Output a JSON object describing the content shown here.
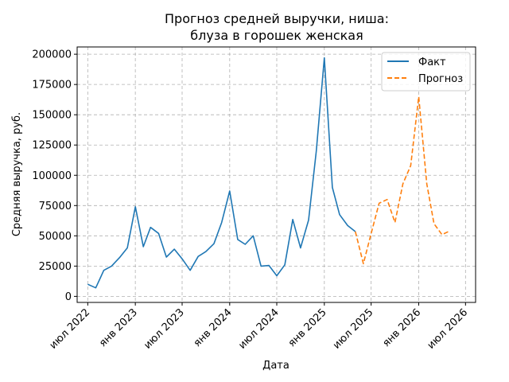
{
  "chart_data": {
    "type": "line",
    "title_line1": "Прогноз средней выручки, ниша:",
    "title_line2": "блуза в горошек женская",
    "xlabel": "Дата",
    "ylabel": "Средняя выручка, руб.",
    "ylim": [
      -5000,
      206000
    ],
    "xlim": [
      "2022-05-21",
      "2026-08-09"
    ],
    "grid": true,
    "legend_position": "top-right",
    "yticks": [
      0,
      25000,
      50000,
      75000,
      100000,
      125000,
      150000,
      175000,
      200000
    ],
    "ytick_labels": [
      "0",
      "25000",
      "50000",
      "75000",
      "100000",
      "125000",
      "150000",
      "175000",
      "200000"
    ],
    "xticks": [
      "2022-07-01",
      "2023-01-01",
      "2023-07-01",
      "2024-01-01",
      "2024-07-01",
      "2025-01-01",
      "2025-07-01",
      "2026-01-01",
      "2026-07-01"
    ],
    "xtick_labels": [
      "июл 2022",
      "янв 2023",
      "июл 2023",
      "янв 2024",
      "июл 2024",
      "янв 2025",
      "июл 2025",
      "янв 2026",
      "июл 2026"
    ],
    "series": [
      {
        "name": "Факт",
        "color": "#1f77b4",
        "style": "solid",
        "x": [
          "2022-07-01",
          "2022-08-01",
          "2022-09-01",
          "2022-10-01",
          "2022-11-01",
          "2022-12-01",
          "2023-01-01",
          "2023-02-01",
          "2023-03-01",
          "2023-04-01",
          "2023-05-01",
          "2023-06-01",
          "2023-07-01",
          "2023-08-01",
          "2023-09-01",
          "2023-10-01",
          "2023-11-01",
          "2023-12-01",
          "2024-01-01",
          "2024-02-01",
          "2024-03-01",
          "2024-04-01",
          "2024-05-01",
          "2024-06-01",
          "2024-07-01",
          "2024-08-01",
          "2024-09-01",
          "2024-10-01",
          "2024-11-01",
          "2024-12-01",
          "2025-01-01",
          "2025-02-01",
          "2025-03-01",
          "2025-04-01",
          "2025-05-01"
        ],
        "values": [
          10000,
          7000,
          21500,
          25000,
          32000,
          40000,
          74000,
          41000,
          57000,
          52000,
          32500,
          39000,
          31000,
          21500,
          33000,
          37000,
          43500,
          61000,
          87000,
          47000,
          43000,
          50000,
          25000,
          25500,
          17000,
          26000,
          63500,
          40000,
          63000,
          120000,
          197000,
          90000,
          67500,
          58500,
          53500
        ]
      },
      {
        "name": "Прогноз",
        "color": "#ff7f0e",
        "style": "dashed",
        "x": [
          "2025-05-01",
          "2025-06-01",
          "2025-07-01",
          "2025-08-01",
          "2025-09-01",
          "2025-10-01",
          "2025-11-01",
          "2025-12-01",
          "2026-01-01",
          "2026-02-01",
          "2026-03-01",
          "2026-04-01",
          "2026-05-01"
        ],
        "values": [
          53500,
          27000,
          52000,
          77000,
          80000,
          61000,
          93000,
          108000,
          165000,
          93000,
          60000,
          51000,
          54000
        ]
      }
    ]
  }
}
